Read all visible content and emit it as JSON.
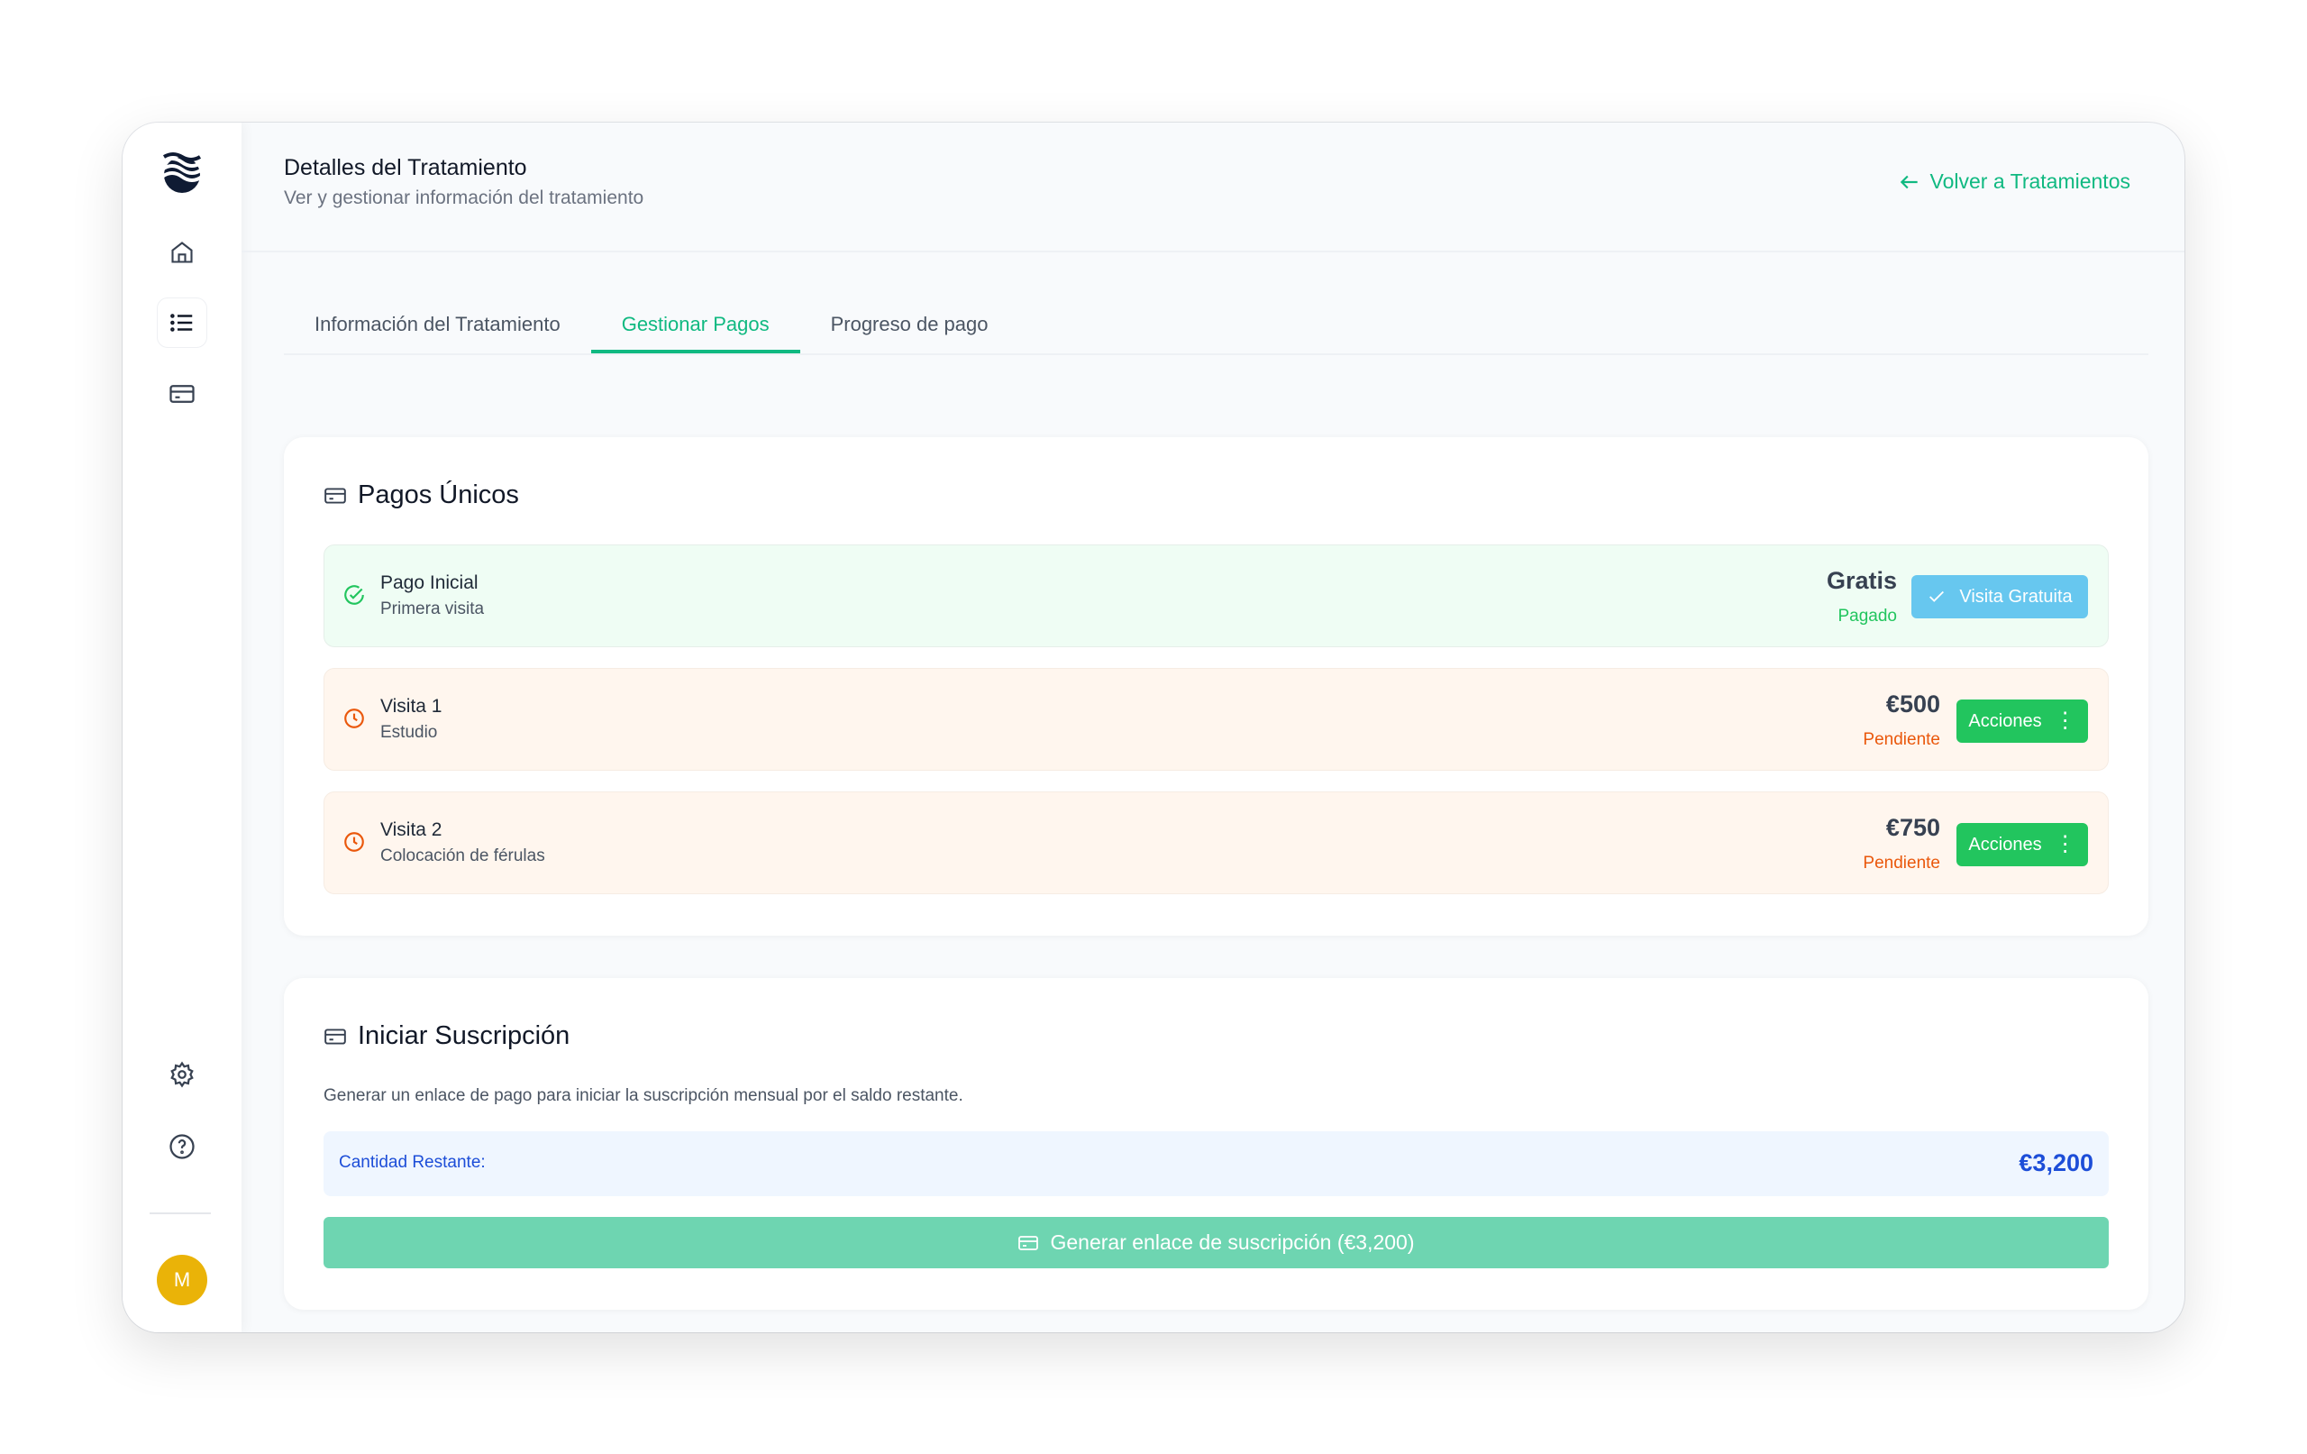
{
  "sidebar": {
    "avatar_initial": "M",
    "items": [
      "logo",
      "home",
      "list",
      "payments",
      "settings",
      "help"
    ]
  },
  "header": {
    "title": "Detalles del Tratamiento",
    "subtitle": "Ver y gestionar información del tratamiento",
    "back_label": "Volver a Tratamientos"
  },
  "tabs": [
    {
      "label": "Información del Tratamiento"
    },
    {
      "label": "Gestionar Pagos",
      "active": true
    },
    {
      "label": "Progreso de pago"
    }
  ],
  "one_time": {
    "title": "Pagos Únicos",
    "rows": [
      {
        "name": "Pago Inicial",
        "desc": "Primera visita",
        "amount": "Gratis",
        "status": "Pagado",
        "button": "Visita Gratuita"
      },
      {
        "name": "Visita 1",
        "desc": "Estudio",
        "amount": "€500",
        "status": "Pendiente",
        "button": "Acciones"
      },
      {
        "name": "Visita 2",
        "desc": "Colocación de férulas",
        "amount": "€750",
        "status": "Pendiente",
        "button": "Acciones"
      }
    ]
  },
  "subscription": {
    "title": "Iniciar Suscripción",
    "description": "Generar un enlace de pago para iniciar la suscripción mensual por el saldo restante.",
    "remaining_label": "Cantidad Restante:",
    "remaining_value": "€3,200",
    "generate_label": "Generar enlace de suscripción (€3,200)"
  },
  "colors": {
    "accent": "#10b981",
    "paid": "#22c55e",
    "pending": "#ea580c",
    "free_button": "#67c7ef",
    "action_button": "#22c55e",
    "link_blue": "#1d4ed8"
  }
}
